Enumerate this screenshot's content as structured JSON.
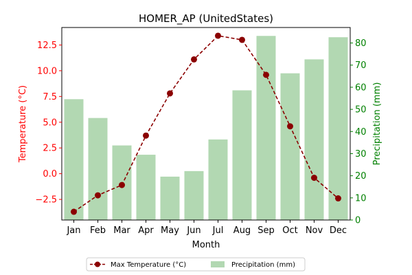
{
  "chart_data": {
    "type": "bar",
    "title": "HOMER_AP (UnitedStates)",
    "xlabel": "Month",
    "categories": [
      "Jan",
      "Feb",
      "Mar",
      "Apr",
      "May",
      "Jun",
      "Jul",
      "Aug",
      "Sep",
      "Oct",
      "Nov",
      "Dec"
    ],
    "series": [
      {
        "name": "Max Temperature (°C)",
        "type": "line",
        "axis": "left",
        "color": "#8b0000",
        "values": [
          -3.7,
          -2.1,
          -1.1,
          3.7,
          7.8,
          11.1,
          13.4,
          13.0,
          9.6,
          4.6,
          -0.4,
          -2.4
        ]
      },
      {
        "name": "Precipitation (mm)",
        "type": "bar",
        "axis": "right",
        "color": "#b2d8b2",
        "values": [
          54.6,
          46.1,
          33.7,
          29.5,
          19.6,
          22.1,
          36.4,
          58.6,
          83.2,
          66.3,
          72.6,
          82.6
        ]
      }
    ],
    "y_left": {
      "label": "Temperature (°C)",
      "color": "#ff0000",
      "range": [
        -4.5,
        14.2
      ],
      "ticks": [
        -2.5,
        0.0,
        2.5,
        5.0,
        7.5,
        10.0,
        12.5
      ],
      "tick_labels": [
        "−2.5",
        "0.0",
        "2.5",
        "5.0",
        "7.5",
        "10.0",
        "12.5"
      ]
    },
    "y_right": {
      "label": "Precipitation (mm)",
      "color": "#008000",
      "range": [
        0,
        87
      ],
      "ticks": [
        0,
        10,
        20,
        30,
        40,
        50,
        60,
        70,
        80
      ],
      "tick_labels": [
        "0",
        "10",
        "20",
        "30",
        "40",
        "50",
        "60",
        "70",
        "80"
      ]
    },
    "grid": false,
    "legend_position": "below"
  }
}
